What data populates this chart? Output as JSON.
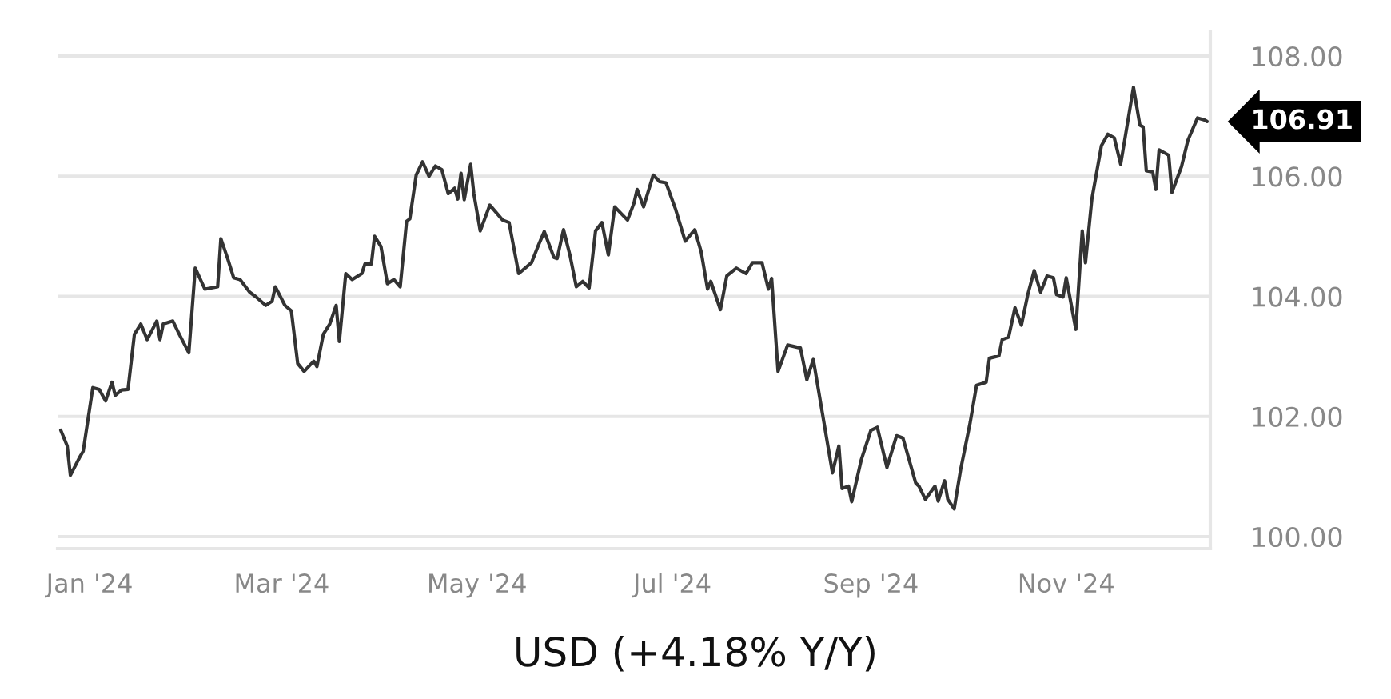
{
  "chart_data": {
    "type": "line",
    "title": "USD (+4.18% Y/Y)",
    "x": [
      "2023-12-23",
      "2023-12-25",
      "2023-12-26",
      "2023-12-29",
      "2023-12-30",
      "2024-01-02",
      "2024-01-04",
      "2024-01-06",
      "2024-01-08",
      "2024-01-09",
      "2024-01-11",
      "2024-01-13",
      "2024-01-15",
      "2024-01-17",
      "2024-01-19",
      "2024-01-22",
      "2024-01-23",
      "2024-01-24",
      "2024-01-27",
      "2024-01-29",
      "2024-02-01",
      "2024-02-03",
      "2024-02-06",
      "2024-02-08",
      "2024-02-10",
      "2024-02-11",
      "2024-02-13",
      "2024-02-15",
      "2024-02-17",
      "2024-02-20",
      "2024-02-22",
      "2024-02-25",
      "2024-02-27",
      "2024-02-28",
      "2024-03-02",
      "2024-03-04",
      "2024-03-06",
      "2024-03-08",
      "2024-03-11",
      "2024-03-12",
      "2024-03-14",
      "2024-03-16",
      "2024-03-18",
      "2024-03-19",
      "2024-03-21",
      "2024-03-23",
      "2024-03-26",
      "2024-03-27",
      "2024-03-29",
      "2024-03-30",
      "2024-04-01",
      "2024-04-03",
      "2024-04-05",
      "2024-04-07",
      "2024-04-09",
      "2024-04-10",
      "2024-04-12",
      "2024-04-14",
      "2024-04-16",
      "2024-04-18",
      "2024-04-20",
      "2024-04-22",
      "2024-04-24",
      "2024-04-25",
      "2024-04-26",
      "2024-04-27",
      "2024-04-29",
      "2024-04-30",
      "2024-05-02",
      "2024-05-05",
      "2024-05-09",
      "2024-05-11",
      "2024-05-14",
      "2024-05-18",
      "2024-05-20",
      "2024-05-22",
      "2024-05-25",
      "2024-05-26",
      "2024-05-28",
      "2024-05-30",
      "2024-06-01",
      "2024-06-03",
      "2024-06-05",
      "2024-06-07",
      "2024-06-09",
      "2024-06-11",
      "2024-06-13",
      "2024-06-17",
      "2024-06-19",
      "2024-06-20",
      "2024-06-22",
      "2024-06-25",
      "2024-06-27",
      "2024-06-29",
      "2024-07-02",
      "2024-07-05",
      "2024-07-08",
      "2024-07-10",
      "2024-07-12",
      "2024-07-13",
      "2024-07-16",
      "2024-07-18",
      "2024-07-21",
      "2024-07-24",
      "2024-07-26",
      "2024-07-29",
      "2024-07-31",
      "2024-08-01",
      "2024-08-03",
      "2024-08-06",
      "2024-08-10",
      "2024-08-12",
      "2024-08-14",
      "2024-08-20",
      "2024-08-22",
      "2024-08-23",
      "2024-08-25",
      "2024-08-26",
      "2024-08-29",
      "2024-09-01",
      "2024-09-03",
      "2024-09-06",
      "2024-09-09",
      "2024-09-11",
      "2024-09-15",
      "2024-09-16",
      "2024-09-18",
      "2024-09-21",
      "2024-09-22",
      "2024-09-24",
      "2024-09-25",
      "2024-09-27",
      "2024-09-29",
      "2024-10-02",
      "2024-10-04",
      "2024-10-07",
      "2024-10-08",
      "2024-10-11",
      "2024-10-12",
      "2024-10-14",
      "2024-10-16",
      "2024-10-18",
      "2024-10-20",
      "2024-10-22",
      "2024-10-24",
      "2024-10-26",
      "2024-10-28",
      "2024-10-29",
      "2024-10-31",
      "2024-11-01",
      "2024-11-04",
      "2024-11-06",
      "2024-11-07",
      "2024-11-09",
      "2024-11-12",
      "2024-11-14",
      "2024-11-16",
      "2024-11-18",
      "2024-11-22",
      "2024-11-24",
      "2024-11-25",
      "2024-11-26",
      "2024-11-28",
      "2024-11-29",
      "2024-11-30",
      "2024-12-03",
      "2024-12-04",
      "2024-12-07",
      "2024-12-09",
      "2024-12-12",
      "2024-12-14",
      "2024-12-15"
    ],
    "series": [
      {
        "color": "#333333",
        "values": [
          101.77,
          101.51,
          101.02,
          101.33,
          101.42,
          102.48,
          102.45,
          102.26,
          102.57,
          102.35,
          102.44,
          102.45,
          103.37,
          103.54,
          103.28,
          103.59,
          103.28,
          103.54,
          103.59,
          103.37,
          103.06,
          104.47,
          104.12,
          104.14,
          104.16,
          104.96,
          104.65,
          104.31,
          104.28,
          104.07,
          103.99,
          103.85,
          103.92,
          104.16,
          103.85,
          103.76,
          102.88,
          102.75,
          102.92,
          102.83,
          103.37,
          103.54,
          103.85,
          103.25,
          104.38,
          104.28,
          104.38,
          104.54,
          104.54,
          105.0,
          104.83,
          104.21,
          104.28,
          104.16,
          105.25,
          105.29,
          106.02,
          106.24,
          106.0,
          106.17,
          106.11,
          105.71,
          105.8,
          105.62,
          106.05,
          105.61,
          106.2,
          105.71,
          105.09,
          105.52,
          105.27,
          105.23,
          104.38,
          104.56,
          104.83,
          105.08,
          104.65,
          104.63,
          105.11,
          104.69,
          104.16,
          104.25,
          104.14,
          105.09,
          105.23,
          104.69,
          105.49,
          105.27,
          105.55,
          105.78,
          105.49,
          106.02,
          105.91,
          105.89,
          105.45,
          104.92,
          105.11,
          104.74,
          104.12,
          104.25,
          103.78,
          104.34,
          104.47,
          104.38,
          104.56,
          104.56,
          104.12,
          104.3,
          102.75,
          103.19,
          103.14,
          102.61,
          102.95,
          101.06,
          101.51,
          100.8,
          100.84,
          100.58,
          101.28,
          101.77,
          101.82,
          101.15,
          101.68,
          101.64,
          100.89,
          100.84,
          100.62,
          100.84,
          100.59,
          100.93,
          100.62,
          100.46,
          101.11,
          101.9,
          102.52,
          102.57,
          102.97,
          103.01,
          103.28,
          103.32,
          103.81,
          103.52,
          104.03,
          104.43,
          104.07,
          104.34,
          104.31,
          104.03,
          103.99,
          104.31,
          103.45,
          105.09,
          104.56,
          105.62,
          106.51,
          106.7,
          106.64,
          106.2,
          107.48,
          106.85,
          106.82,
          106.09,
          106.07,
          105.78,
          106.44,
          106.35,
          105.73,
          106.16,
          106.6,
          106.97,
          106.94,
          106.91
        ]
      }
    ],
    "xlim": [
      "2023-12-22",
      "2024-12-16"
    ],
    "xticks": [
      {
        "value": "2024-01-01",
        "label": "Jan '24"
      },
      {
        "value": "2024-03-01",
        "label": "Mar '24"
      },
      {
        "value": "2024-05-01",
        "label": "May '24"
      },
      {
        "value": "2024-07-01",
        "label": "Jul '24"
      },
      {
        "value": "2024-09-01",
        "label": "Sep '24"
      },
      {
        "value": "2024-11-01",
        "label": "Nov '24"
      }
    ],
    "ylim": [
      99.8,
      108.4
    ],
    "yticks": [
      {
        "value": 100,
        "label": "100.00"
      },
      {
        "value": 102,
        "label": "102.00"
      },
      {
        "value": 104,
        "label": "104.00"
      },
      {
        "value": 106,
        "label": "106.00"
      },
      {
        "value": 108,
        "label": "108.00"
      }
    ],
    "grid": "y",
    "annotations": [
      {
        "text": "106.91",
        "x": "2024-12-15",
        "y": 106.91
      }
    ]
  }
}
